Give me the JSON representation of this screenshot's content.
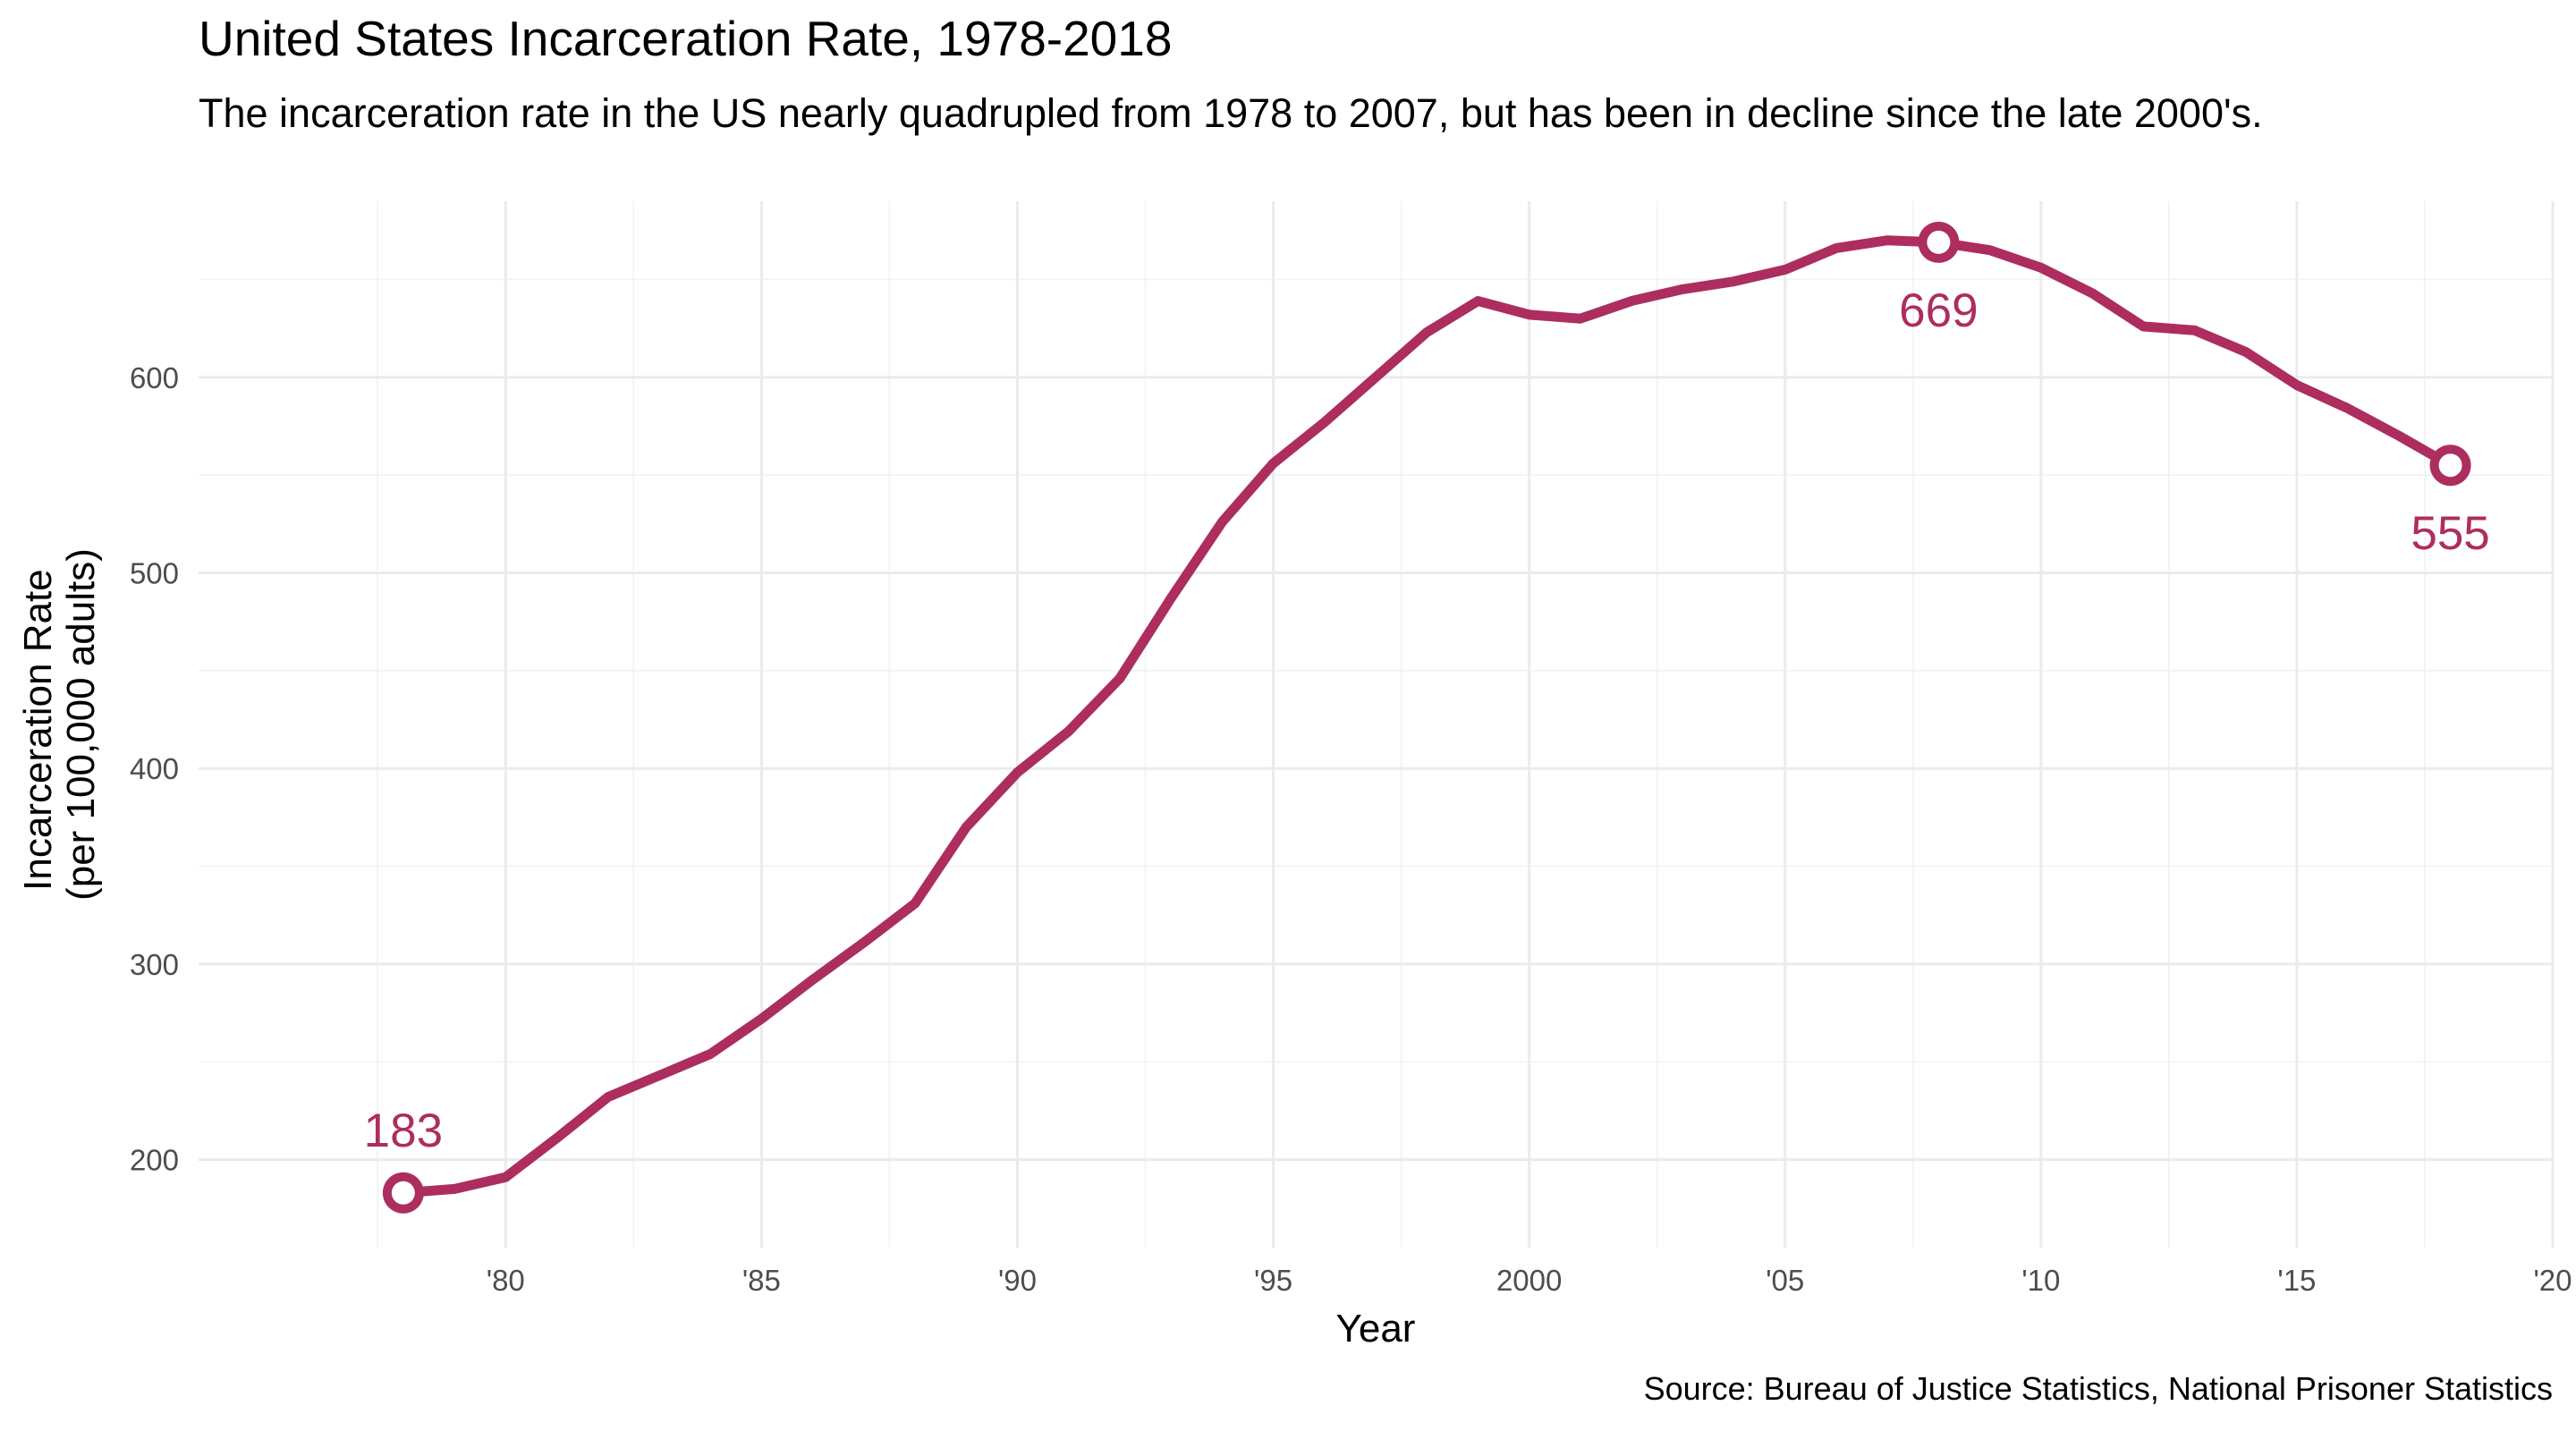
{
  "chart_data": {
    "type": "line",
    "title": "United States Incarceration Rate, 1978-2018",
    "subtitle": "The incarceration rate in the US nearly quadrupled from 1978 to 2007, but has been in decline since the late 2000's.",
    "xlabel": "Year",
    "ylabel": [
      "Incarceration Rate",
      "(per 100,000 adults)"
    ],
    "caption": "Source: Bureau of Justice Statistics, National Prisoner Statistics",
    "xlim": [
      1974,
      2020
    ],
    "ylim": [
      155,
      690
    ],
    "x_ticks": [
      {
        "value": 1980,
        "label": "'80"
      },
      {
        "value": 1985,
        "label": "'85"
      },
      {
        "value": 1990,
        "label": "'90"
      },
      {
        "value": 1995,
        "label": "'95"
      },
      {
        "value": 2000,
        "label": "2000"
      },
      {
        "value": 2005,
        "label": "'05"
      },
      {
        "value": 2010,
        "label": "'10"
      },
      {
        "value": 2015,
        "label": "'15"
      },
      {
        "value": 2020,
        "label": "'20"
      }
    ],
    "y_ticks": [
      200,
      300,
      400,
      500,
      600
    ],
    "grid": true,
    "series": [
      {
        "color": "#ad2d5f",
        "x": [
          1978,
          1979,
          1980,
          1981,
          1982,
          1983,
          1984,
          1985,
          1986,
          1987,
          1988,
          1989,
          1990,
          1991,
          1992,
          1993,
          1994,
          1995,
          1996,
          1997,
          1998,
          1999,
          2000,
          2001,
          2002,
          2003,
          2004,
          2005,
          2006,
          2007,
          2008,
          2009,
          2010,
          2011,
          2012,
          2013,
          2014,
          2015,
          2016,
          2017,
          2018
        ],
        "y": [
          183,
          185,
          191,
          211,
          232,
          243,
          254,
          272,
          292,
          311,
          331,
          370,
          398,
          419,
          446,
          487,
          526,
          556,
          577,
          600,
          623,
          639,
          632,
          630,
          639,
          645,
          649,
          655,
          666,
          670,
          669,
          665,
          656,
          643,
          626,
          624,
          613,
          596,
          584,
          570,
          555
        ]
      }
    ],
    "highlights": [
      {
        "x": 1978,
        "y": 183,
        "label": "183",
        "label_position": "above"
      },
      {
        "x": 2008,
        "y": 669,
        "label": "669",
        "label_position": "below"
      },
      {
        "x": 2018,
        "y": 555,
        "label": "555",
        "label_position": "below"
      }
    ]
  }
}
